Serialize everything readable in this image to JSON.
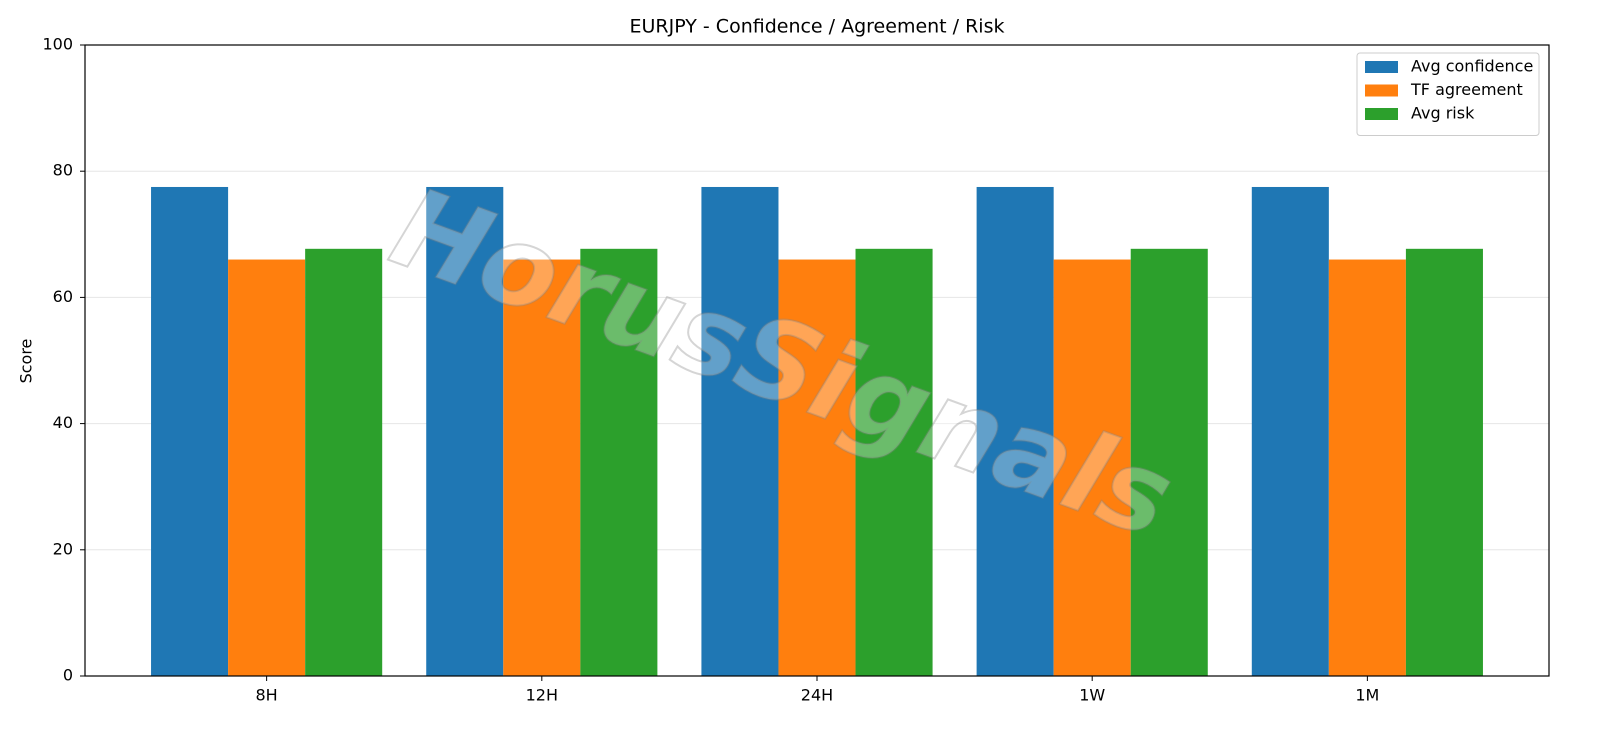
{
  "chart_data": {
    "type": "bar",
    "title": "EURJPY - Confidence / Agreement / Risk",
    "y_label": "Score",
    "watermark": "HorusSignals",
    "categories": [
      "8H",
      "12H",
      "24H",
      "1W",
      "1M"
    ],
    "series": [
      {
        "name": "Avg confidence",
        "color": "#1f77b4",
        "values": [
          77.5,
          77.5,
          77.5,
          77.5,
          77.5
        ]
      },
      {
        "name": "TF agreement",
        "color": "#ff7f0e",
        "values": [
          66,
          66,
          66,
          66,
          66
        ]
      },
      {
        "name": "Avg risk",
        "color": "#2ca02c",
        "values": [
          67.7,
          67.7,
          67.7,
          67.7,
          67.7
        ]
      }
    ],
    "ylim": [
      0,
      100
    ],
    "yticks": [
      0,
      20,
      40,
      60,
      80,
      100
    ],
    "grid": true,
    "legend": "upper-right"
  }
}
